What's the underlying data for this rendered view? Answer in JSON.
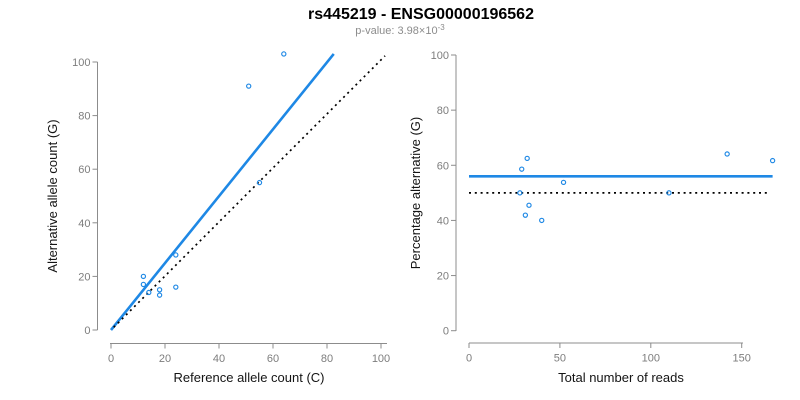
{
  "header": {
    "title": "rs445219 - ENSG00000196562",
    "pvalue_label": "p-value: 3.98×10",
    "pvalue_exponent": "-3"
  },
  "colors": {
    "accent_blue": "#1E88E5",
    "dotted_line": "#000000",
    "axis": "#8c8c8c",
    "tick_text": "#7d7d7d"
  },
  "chart_data": [
    {
      "type": "scatter",
      "title": "rs445219 - ENSG00000196562",
      "xlabel": "Reference allele count (C)",
      "ylabel": "Alternative allele count (G)",
      "xlim": [
        0,
        100
      ],
      "ylim": [
        0,
        103
      ],
      "xticks": [
        0,
        20,
        40,
        60,
        80,
        100
      ],
      "yticks": [
        0,
        20,
        40,
        60,
        80,
        100
      ],
      "grid": false,
      "point_color": "#1E88E5",
      "points": [
        [
          64,
          103
        ],
        [
          51,
          91
        ],
        [
          55,
          55
        ],
        [
          24,
          28
        ],
        [
          12,
          20
        ],
        [
          12,
          17
        ],
        [
          14,
          14
        ],
        [
          18,
          15
        ],
        [
          18,
          13
        ],
        [
          24,
          16
        ]
      ],
      "lines": [
        {
          "name": "regression",
          "style": "solid",
          "color": "#1E88E5",
          "from": [
            0,
            0
          ],
          "to": [
            82.5,
            103
          ]
        },
        {
          "name": "identity",
          "style": "dotted",
          "color": "#000000",
          "from": [
            1,
            1
          ],
          "to": [
            101.5,
            102.3
          ]
        }
      ]
    },
    {
      "type": "scatter",
      "title": "rs445219 - ENSG00000196562",
      "xlabel": "Total number of reads",
      "ylabel": "Percentage alternative (G)",
      "xlim": [
        0,
        167
      ],
      "ylim": [
        0,
        100
      ],
      "xticks": [
        0,
        50,
        100,
        150
      ],
      "yticks": [
        0,
        20,
        40,
        60,
        80,
        100
      ],
      "grid": false,
      "point_color": "#1E88E5",
      "points": [
        [
          167,
          61.7
        ],
        [
          142,
          64.1
        ],
        [
          110,
          50
        ],
        [
          52,
          53.8
        ],
        [
          32,
          62.5
        ],
        [
          29,
          58.6
        ],
        [
          28,
          50
        ],
        [
          33,
          45.5
        ],
        [
          31,
          41.9
        ],
        [
          40,
          40
        ]
      ],
      "lines": [
        {
          "name": "mean-percentage",
          "style": "solid",
          "color": "#1E88E5",
          "from": [
            0,
            56
          ],
          "to": [
            167,
            56
          ]
        },
        {
          "name": "expected-50pct",
          "style": "dotted",
          "color": "#000000",
          "from": [
            0,
            50
          ],
          "to": [
            164,
            50
          ]
        }
      ]
    }
  ]
}
